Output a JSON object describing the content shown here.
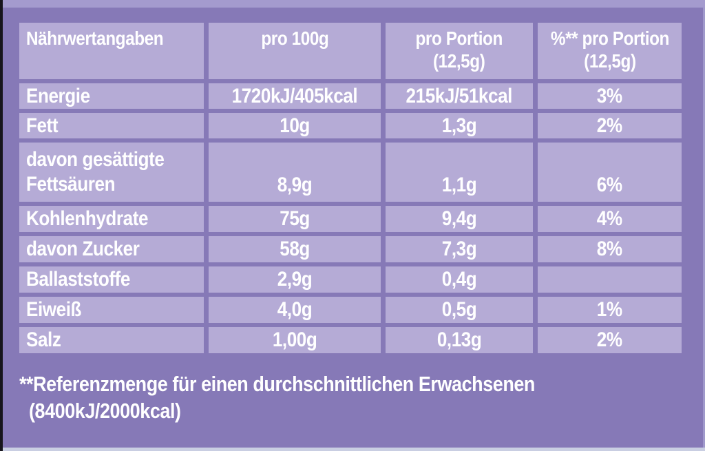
{
  "colors": {
    "backdrop_purple": "#8679b7",
    "cell_purple": "#b5abd6",
    "text_white": "#ffffff",
    "top_strip": "#a49bce",
    "bottom_strip": "#c9cee2",
    "left_edge_black": "#17151c"
  },
  "table": {
    "headers": [
      {
        "label": "Nährwertangaben"
      },
      {
        "label": "pro 100g"
      },
      {
        "label": "pro Portion\n(12,5g)"
      },
      {
        "label": "%** pro Portion\n(12,5g)"
      }
    ],
    "rows": [
      {
        "label": "Energie",
        "per_100g": "1720kJ/405kcal",
        "per_portion": "215kJ/51kcal",
        "percent_per_portion": "3%"
      },
      {
        "label": "Fett",
        "per_100g": "10g",
        "per_portion": "1,3g",
        "percent_per_portion": "2%"
      },
      {
        "label": "davon gesättigte\nFettsäuren",
        "per_100g": "8,9g",
        "per_portion": "1,1g",
        "percent_per_portion": "6%"
      },
      {
        "label": "Kohlenhydrate",
        "per_100g": "75g",
        "per_portion": "9,4g",
        "percent_per_portion": "4%"
      },
      {
        "label": "davon Zucker",
        "per_100g": "58g",
        "per_portion": "7,3g",
        "percent_per_portion": "8%"
      },
      {
        "label": "Ballaststoffe",
        "per_100g": "2,9g",
        "per_portion": "0,4g",
        "percent_per_portion": ""
      },
      {
        "label": "Eiweiß",
        "per_100g": "4,0g",
        "per_portion": "0,5g",
        "percent_per_portion": "1%"
      },
      {
        "label": "Salz",
        "per_100g": "1,00g",
        "per_portion": "0,13g",
        "percent_per_portion": "2%"
      }
    ]
  },
  "footnote": {
    "line1": "**Referenzmenge für einen durchschnittlichen Erwachsenen",
    "line2": "(8400kJ/2000kcal)"
  },
  "chart_data": {
    "type": "table",
    "title": "Nährwertangaben",
    "columns": [
      "Nährwertangaben",
      "pro 100g",
      "pro Portion (12,5g)",
      "%** pro Portion (12,5g)"
    ],
    "rows": [
      [
        "Energie",
        "1720kJ/405kcal",
        "215kJ/51kcal",
        "3%"
      ],
      [
        "Fett",
        "10g",
        "1,3g",
        "2%"
      ],
      [
        "davon gesättigte Fettsäuren",
        "8,9g",
        "1,1g",
        "6%"
      ],
      [
        "Kohlenhydrate",
        "75g",
        "9,4g",
        "4%"
      ],
      [
        "davon Zucker",
        "58g",
        "7,3g",
        "8%"
      ],
      [
        "Ballaststoffe",
        "2,9g",
        "0,4g",
        ""
      ],
      [
        "Eiweiß",
        "4,0g",
        "0,5g",
        "1%"
      ],
      [
        "Salz",
        "1,00g",
        "0,13g",
        "2%"
      ]
    ]
  }
}
